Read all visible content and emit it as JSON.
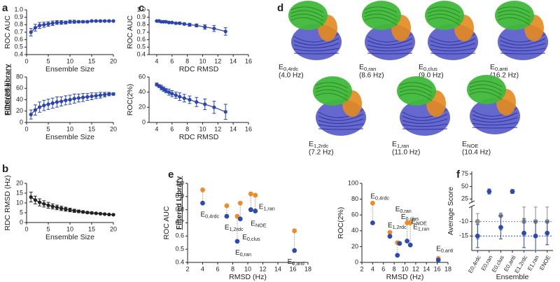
{
  "panel_labels": [
    "a",
    "b",
    "c",
    "d",
    "e",
    "f"
  ],
  "side_labels": [
    "Filtered library",
    "Filtered Library"
  ],
  "structures": [
    {
      "main": "E",
      "sub": "0,4rdc",
      "rmsd": "(4.0 Hz)"
    },
    {
      "main": "E",
      "sub": "0,ran",
      "rmsd": "(8.6 Hz)"
    },
    {
      "main": "E",
      "sub": "0,clus",
      "rmsd": "(9.0 Hz)"
    },
    {
      "main": "E",
      "sub": "0,anti",
      "rmsd": "(16.2 Hz)"
    },
    {
      "main": "E",
      "sub": "1,2rdc",
      "rmsd": "(7.2 Hz)"
    },
    {
      "main": "E",
      "sub": "1,ran",
      "rmsd": "(11.0 Hz)"
    },
    {
      "main": "E",
      "sub": "NOE",
      "rmsd": "(10.4 Hz)"
    }
  ],
  "chart_data": [
    {
      "type": "line",
      "xlabel": "Ensemble Size",
      "ylabel": "ROC AUC",
      "x": [
        1,
        2,
        3,
        4,
        5,
        6,
        7,
        8,
        9,
        10,
        11,
        12,
        13,
        14,
        15,
        16,
        17,
        18,
        19,
        20
      ],
      "xlim": [
        0,
        20
      ],
      "xticks": [
        0,
        5,
        10,
        15,
        20
      ],
      "ylim": [
        0.4,
        1
      ],
      "yticks": [
        0.4,
        0.5,
        0.6,
        0.7,
        0.8,
        0.9,
        {
          "value": 1,
          "label": "1.0"
        }
      ],
      "series": [
        {
          "color": "#2b45b0",
          "values": [
            0.7,
            0.76,
            0.79,
            0.8,
            0.81,
            0.82,
            0.83,
            0.83,
            0.83,
            0.84,
            0.84,
            0.84,
            0.84,
            0.84,
            0.85,
            0.85,
            0.85,
            0.85,
            0.85,
            0.85
          ],
          "errors": [
            0.05,
            0.045,
            0.04,
            0.035,
            0.03,
            0.03,
            0.025,
            0.025,
            0.02,
            0.02,
            0.02,
            0.015,
            0.015,
            0.015,
            0.01,
            0.01,
            0.01,
            0.01,
            0.01,
            0.005
          ]
        }
      ]
    },
    {
      "type": "line",
      "xlabel": "Ensemble Size",
      "ylabel": "ROC(2%)",
      "x": [
        1,
        2,
        3,
        4,
        5,
        6,
        7,
        8,
        9,
        10,
        11,
        12,
        13,
        14,
        15,
        16,
        17,
        18,
        19,
        20
      ],
      "xlim": [
        0,
        20
      ],
      "xticks": [
        0,
        5,
        10,
        15,
        20
      ],
      "ylim": [
        0,
        80
      ],
      "yticks": [
        0,
        20,
        40,
        60,
        80
      ],
      "series": [
        {
          "color": "#2b45b0",
          "values": [
            14,
            22,
            27,
            30,
            32,
            34,
            36,
            37,
            39,
            40,
            42,
            43,
            44,
            45,
            46,
            47,
            48,
            49,
            50,
            50
          ],
          "errors": [
            8,
            9,
            9,
            9,
            9,
            9,
            9,
            8,
            8,
            8,
            8,
            7,
            7,
            6,
            6,
            5,
            5,
            4,
            3,
            2
          ]
        }
      ]
    },
    {
      "type": "line",
      "xlabel": "Ensemble Size",
      "ylabel": "RDC RMSD (Hz)",
      "x": [
        1,
        2,
        3,
        4,
        5,
        6,
        7,
        8,
        9,
        10,
        11,
        12,
        13,
        14,
        15,
        16,
        17,
        18,
        19,
        20
      ],
      "xlim": [
        0,
        20
      ],
      "xticks": [
        0,
        5,
        10,
        15,
        20
      ],
      "ylim": [
        0,
        20
      ],
      "yticks": [
        0,
        5,
        10,
        15,
        20
      ],
      "series": [
        {
          "color": "#222222",
          "values": [
            13,
            11.5,
            10.3,
            9.5,
            8.8,
            8.2,
            7.7,
            7.2,
            6.8,
            6.4,
            6.0,
            5.7,
            5.4,
            5.1,
            4.9,
            4.7,
            4.5,
            4.3,
            4.1,
            4.0
          ],
          "errors": [
            2.5,
            2,
            1.8,
            1.6,
            1.5,
            1.3,
            1.2,
            1.1,
            1,
            0.9,
            0.8,
            0.7,
            0.6,
            0.5,
            0.5,
            0.4,
            0.3,
            0.3,
            0.2,
            0.2
          ]
        }
      ]
    },
    {
      "type": "line",
      "xlabel": "RDC RMSD",
      "ylabel": "ROC AUC",
      "x": [
        4.0,
        4.3,
        4.6,
        4.9,
        5.2,
        5.6,
        6.0,
        6.5,
        7.0,
        7.6,
        8.3,
        9.2,
        10.3,
        11.5,
        13.0
      ],
      "xlim": [
        3,
        16
      ],
      "xticks": [
        4,
        6,
        8,
        10,
        12,
        14,
        16
      ],
      "ylim": [
        0.4,
        1
      ],
      "yticks": [
        0.4,
        0.5,
        0.6,
        0.7,
        0.8,
        0.9,
        {
          "value": 1,
          "label": "1.0"
        }
      ],
      "series": [
        {
          "color": "#2b45b0",
          "values": [
            0.85,
            0.85,
            0.84,
            0.84,
            0.84,
            0.83,
            0.83,
            0.82,
            0.82,
            0.81,
            0.8,
            0.79,
            0.77,
            0.75,
            0.71
          ],
          "errors": [
            0.005,
            0.005,
            0.005,
            0.005,
            0.01,
            0.01,
            0.01,
            0.01,
            0.015,
            0.015,
            0.02,
            0.02,
            0.03,
            0.04,
            0.05
          ]
        }
      ]
    },
    {
      "type": "line",
      "xlabel": "RDC RMSD",
      "ylabel": "ROC(2%)",
      "x": [
        4.0,
        4.3,
        4.6,
        4.9,
        5.2,
        5.6,
        6.0,
        6.5,
        7.0,
        7.6,
        8.3,
        9.2,
        10.3,
        11.5,
        13.0
      ],
      "xlim": [
        3,
        16
      ],
      "xticks": [
        4,
        6,
        8,
        10,
        12,
        14,
        16
      ],
      "ylim": [
        0,
        60
      ],
      "yticks": [
        0,
        20,
        40,
        60
      ],
      "series": [
        {
          "color": "#2b45b0",
          "values": [
            50,
            48,
            46,
            44,
            42,
            40,
            38,
            36,
            34,
            32,
            30,
            27,
            24,
            20,
            14
          ],
          "errors": [
            2,
            2,
            3,
            3,
            3,
            4,
            4,
            4,
            5,
            5,
            5,
            6,
            7,
            8,
            10
          ]
        }
      ]
    },
    {
      "type": "scatter",
      "xlabel": "RMSD (Hz)",
      "ylabel": "ROC AUC",
      "x": [
        4.0,
        7.2,
        8.6,
        9.0,
        10.4,
        11.0,
        16.2
      ],
      "xlim": [
        2,
        18
      ],
      "xticks": [
        2,
        4,
        6,
        8,
        10,
        12,
        14,
        16,
        18
      ],
      "ylim": [
        0.4,
        1
      ],
      "yticks": [
        0.4,
        0.5,
        0.6,
        0.7,
        0.8,
        0.9,
        {
          "value": 1,
          "label": "1.0"
        }
      ],
      "connect": true,
      "point_labels": [
        {
          "main": "E",
          "sub": "0,4rdc"
        },
        {
          "main": "E",
          "sub": "1,2rdc"
        },
        {
          "main": "E",
          "sub": "0,ran"
        },
        {
          "main": "E",
          "sub": "0,clus"
        },
        {
          "main": "E",
          "sub": "NOE"
        },
        {
          "main": "E",
          "sub": "1,ran"
        },
        {
          "main": "E",
          "sub": "0,anti"
        }
      ],
      "series": [
        {
          "color": "#f08a24",
          "values": [
            0.95,
            0.83,
            0.75,
            0.85,
            0.92,
            0.91,
            0.64
          ]
        },
        {
          "color": "#2b4bb0",
          "values": [
            0.85,
            0.75,
            0.56,
            0.73,
            0.8,
            0.79,
            0.49
          ]
        }
      ]
    },
    {
      "type": "scatter",
      "xlabel": "RMSD (Hz)",
      "ylabel": "ROC(2%)",
      "x": [
        4.0,
        7.2,
        8.6,
        9.0,
        10.4,
        11.0,
        16.2
      ],
      "xlim": [
        2,
        18
      ],
      "xticks": [
        2,
        4,
        6,
        8,
        10,
        12,
        14,
        16,
        18
      ],
      "ylim": [
        0,
        100
      ],
      "yticks": [
        0,
        20,
        40,
        60,
        80,
        100
      ],
      "connect": true,
      "point_labels": [
        {
          "main": "E",
          "sub": "0,4rdc"
        },
        {
          "main": "E",
          "sub": "1,2rdc"
        },
        {
          "main": "E",
          "sub": "0,ran"
        },
        {
          "main": "E",
          "sub": "0,clus"
        },
        {
          "main": "E",
          "sub": "NOE"
        },
        {
          "main": "E",
          "sub": "1,ran"
        },
        {
          "main": "E",
          "sub": "0,anti"
        }
      ],
      "series": [
        {
          "color": "#f08a24",
          "values": [
            75,
            38,
            25,
            24,
            50,
            50,
            5
          ]
        },
        {
          "color": "#2b4bb0",
          "values": [
            50,
            33,
            9,
            24,
            27,
            22,
            3
          ]
        }
      ]
    },
    {
      "type": "scatter",
      "xlabel": "Ensemble",
      "ylabel": "Average Score",
      "categories": [
        "E0,4rdc",
        "E0,ran",
        "E0,clus",
        "E0,anti",
        "E1,2rdc",
        "E1,ran",
        "ENOE"
      ],
      "ylim": [
        -20,
        80
      ],
      "ybreak": [
        -5,
        20
      ],
      "yticks": [
        -15,
        -10,
        25,
        50,
        75
      ],
      "hlines": [
        {
          "value": -10,
          "color": "#8a8a8a"
        },
        {
          "value": -15,
          "color": "#2b4bb0"
        }
      ],
      "series": [
        {
          "color": "#8a8a8a",
          "values": [
            -10,
            null,
            -8,
            null,
            -10,
            -10,
            -10
          ],
          "errors": [
            6,
            null,
            5,
            null,
            5,
            5,
            5
          ]
        },
        {
          "color": "#2b4bb0",
          "values": [
            -15,
            40,
            -12,
            40,
            -14,
            -15,
            -14
          ],
          "errors": [
            4,
            5,
            4,
            4,
            5,
            5,
            4
          ]
        }
      ]
    }
  ]
}
